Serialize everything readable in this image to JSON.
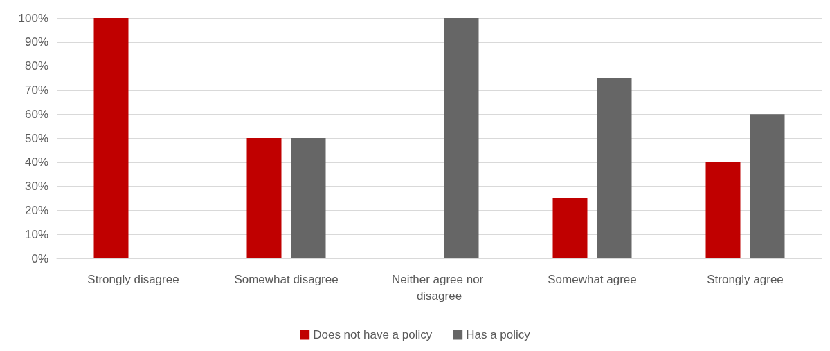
{
  "chart_data": {
    "type": "bar",
    "categories": [
      "Strongly disagree",
      "Somewhat disagree",
      "Neither agree nor disagree",
      "Somewhat agree",
      "Strongly agree"
    ],
    "series": [
      {
        "name": "Does not have a policy",
        "color": "#c00000",
        "values": [
          100,
          50,
          0,
          25,
          40
        ]
      },
      {
        "name": "Has a policy",
        "color": "#666666",
        "values": [
          0,
          50,
          100,
          75,
          60
        ]
      }
    ],
    "ylim": [
      0,
      100
    ],
    "yticks": [
      {
        "value": 0,
        "label": "0%"
      },
      {
        "value": 10,
        "label": "10%"
      },
      {
        "value": 20,
        "label": "20%"
      },
      {
        "value": 30,
        "label": "30%"
      },
      {
        "value": 40,
        "label": "40%"
      },
      {
        "value": 50,
        "label": "50%"
      },
      {
        "value": 60,
        "label": "60%"
      },
      {
        "value": 70,
        "label": "70%"
      },
      {
        "value": 80,
        "label": "80%"
      },
      {
        "value": 90,
        "label": "90%"
      },
      {
        "value": 100,
        "label": "100%"
      }
    ],
    "grid": "y",
    "legend": "bottom"
  }
}
